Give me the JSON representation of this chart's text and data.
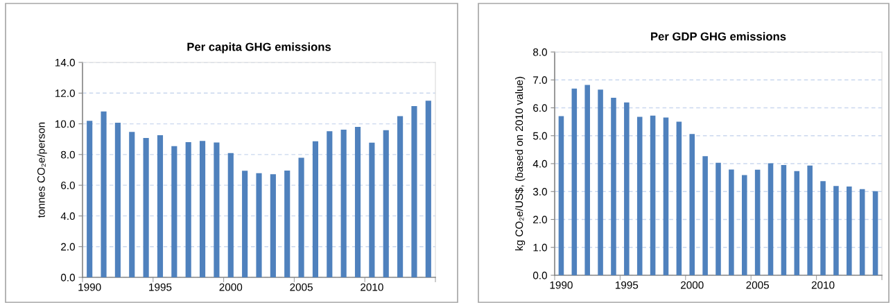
{
  "chart_data": [
    {
      "type": "bar",
      "title": "Per capita GHG emissions",
      "ylabel": "tonnes CO₂e/person",
      "categories": [
        "1990",
        null,
        null,
        null,
        null,
        "1995",
        null,
        null,
        null,
        null,
        "2000",
        null,
        null,
        null,
        null,
        "2005",
        null,
        null,
        null,
        null,
        "2010",
        null,
        null,
        null,
        null
      ],
      "values": [
        10.19,
        10.8,
        10.07,
        9.47,
        9.08,
        9.26,
        8.55,
        8.81,
        8.89,
        8.78,
        8.09,
        6.94,
        6.78,
        6.72,
        6.96,
        7.79,
        8.86,
        9.52,
        9.62,
        9.8,
        8.77,
        9.58,
        10.5,
        11.16,
        11.51
      ],
      "color": "#4f81bd",
      "ylim": [
        0,
        14
      ],
      "yticks": [
        {
          "value": 0,
          "label": "0.0"
        },
        {
          "value": 2,
          "label": "2.0"
        },
        {
          "value": 4,
          "label": "4.0"
        },
        {
          "value": 6,
          "label": "6.0"
        },
        {
          "value": 8,
          "label": "8.0"
        },
        {
          "value": 10,
          "label": "10.0"
        },
        {
          "value": 12,
          "label": "12.0"
        },
        {
          "value": 14,
          "label": "14.0"
        }
      ],
      "grid": "y"
    },
    {
      "type": "bar",
      "title": "Per GDP GHG emissions",
      "ylabel": "kg CO₂e/US$, (based on 2010 value)",
      "categories": [
        "1990",
        null,
        null,
        null,
        null,
        "1995",
        null,
        null,
        null,
        null,
        "2000",
        null,
        null,
        null,
        null,
        "2005",
        null,
        null,
        null,
        null,
        "2010",
        null,
        null,
        null,
        null
      ],
      "values": [
        5.7,
        6.69,
        6.82,
        6.65,
        6.36,
        6.19,
        5.68,
        5.72,
        5.65,
        5.5,
        5.06,
        4.27,
        4.03,
        3.79,
        3.59,
        3.78,
        4.01,
        3.95,
        3.73,
        3.93,
        3.37,
        3.2,
        3.18,
        3.09,
        3.01
      ],
      "color": "#4f81bd",
      "ylim": [
        0,
        8
      ],
      "yticks": [
        {
          "value": 0,
          "label": "0.0"
        },
        {
          "value": 1,
          "label": "1.0"
        },
        {
          "value": 2,
          "label": "2.0"
        },
        {
          "value": 3,
          "label": "3.0"
        },
        {
          "value": 4,
          "label": "4.0"
        },
        {
          "value": 5,
          "label": "5.0"
        },
        {
          "value": 6,
          "label": "6.0"
        },
        {
          "value": 7,
          "label": "7.0"
        },
        {
          "value": 8,
          "label": "8.0"
        }
      ],
      "grid": "y"
    }
  ]
}
